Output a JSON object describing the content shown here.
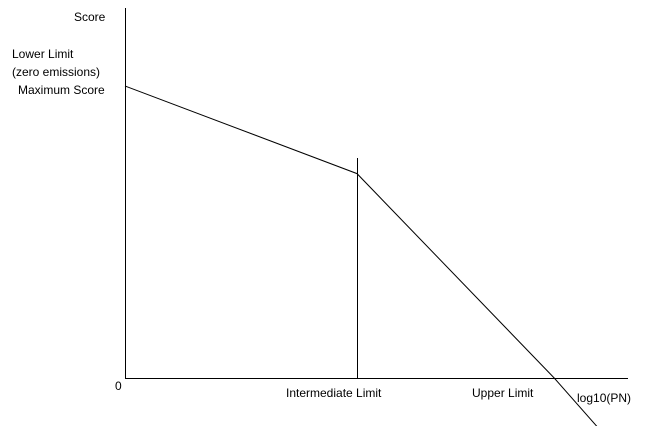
{
  "chart_data": {
    "type": "line",
    "title": "",
    "xlabel": "log10(PN)",
    "ylabel": "Score",
    "grid": false,
    "legend": "none",
    "y_annotations": {
      "lower_limit": "Lower Limit",
      "zero_emissions": "(zero emissions)",
      "maximum_score": "Maximum Score"
    },
    "x_annotations": {
      "origin": "0",
      "intermediate_limit": "Intermediate Limit",
      "upper_limit": "Upper Limit"
    },
    "points": [
      {
        "x": 0,
        "y": 1.0
      },
      {
        "x": 1.0,
        "y": 0.7
      },
      {
        "x": 1.85,
        "y": 0.0
      },
      {
        "x": 2.05,
        "y": -0.18
      }
    ],
    "intermediate_limit_x": 1.0,
    "upper_limit_x": 1.85,
    "colors": {
      "line": "#000000",
      "axis": "#000000",
      "background": "#ffffff"
    }
  }
}
